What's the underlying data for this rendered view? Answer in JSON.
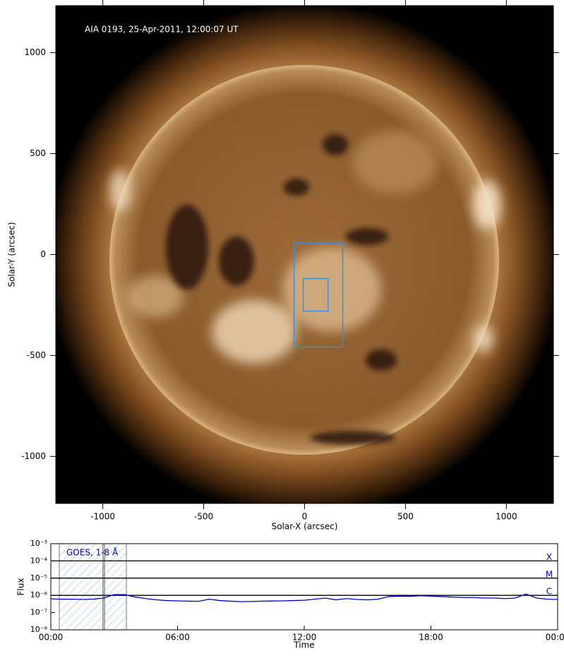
{
  "chart_data": [
    {
      "type": "image",
      "title": "AIA 0193, 25-Apr-2011, 12:00:07 UT",
      "xlabel": "Solar-X (arcsec)",
      "ylabel": "Solar-Y (arcsec)",
      "xlim": [
        -1233,
        1233
      ],
      "ylim": [
        -1233,
        1233
      ],
      "xticks": [
        -1000,
        -500,
        0,
        500,
        1000
      ],
      "yticks": [
        -1000,
        -500,
        0,
        500,
        1000
      ],
      "boxes": [
        {
          "x": [
            -52,
            189
          ],
          "y": [
            -458,
            56
          ],
          "color": "#3a8fd8"
        },
        {
          "x": [
            -7,
            116
          ],
          "y": [
            -280,
            -119
          ],
          "color": "#3a8fd8"
        }
      ]
    },
    {
      "type": "line",
      "xlabel": "Time",
      "ylabel": "Flux",
      "log_y": true,
      "xlim": [
        0,
        24
      ],
      "xticks": [
        {
          "value": 0,
          "label": "00:00"
        },
        {
          "value": 6,
          "label": "06:00"
        },
        {
          "value": 12,
          "label": "12:00"
        },
        {
          "value": 18,
          "label": "18:00"
        },
        {
          "value": 24,
          "label": "00:00"
        }
      ],
      "ylim": [
        1e-08,
        0.001
      ],
      "yticks": [
        {
          "value": 1e-08,
          "label": "10⁻⁸"
        },
        {
          "value": 1e-07,
          "label": "10⁻⁷"
        },
        {
          "value": 1e-06,
          "label": "10⁻⁶"
        },
        {
          "value": 1e-05,
          "label": "10⁻⁵"
        },
        {
          "value": 0.0001,
          "label": "10⁻⁴"
        },
        {
          "value": 0.001,
          "label": "10⁻³"
        }
      ],
      "flare_classes": [
        {
          "value": 0.0001,
          "label": "X"
        },
        {
          "value": 1e-05,
          "label": "M"
        },
        {
          "value": 1e-06,
          "label": "C"
        }
      ],
      "span": [
        0.4,
        3.58
      ],
      "markers_x": [
        2.47,
        2.54
      ],
      "x": [
        0,
        0.5,
        1,
        1.5,
        2,
        2.5,
        3,
        3.5,
        4,
        4.5,
        5,
        5.5,
        6,
        6.5,
        7,
        7.5,
        8,
        8.5,
        9,
        9.5,
        10,
        10.5,
        11,
        11.5,
        12,
        12.5,
        13,
        13.5,
        14,
        14.5,
        15,
        15.5,
        16,
        16.5,
        17,
        17.5,
        18,
        18.5,
        19,
        19.5,
        20,
        20.5,
        21,
        21.5,
        22,
        22.5,
        23,
        23.5,
        24
      ],
      "series": [
        {
          "name": "GOES, 1-8 Å",
          "color": "#0000cc",
          "values": [
            6.3e-07,
            6e-07,
            6e-07,
            5.8e-07,
            6e-07,
            7e-07,
            1.1e-06,
            1.1e-06,
            8e-07,
            6.5e-07,
            5.5e-07,
            5e-07,
            4.8e-07,
            4.6e-07,
            4.5e-07,
            6e-07,
            5e-07,
            4.6e-07,
            4.3e-07,
            4.4e-07,
            4.6e-07,
            4.7e-07,
            4.8e-07,
            5e-07,
            5.2e-07,
            6e-07,
            7e-07,
            5.5e-07,
            6.5e-07,
            5.8e-07,
            5.5e-07,
            6e-07,
            8.5e-07,
            9e-07,
            8.8e-07,
            9.5e-07,
            9e-07,
            8.5e-07,
            8e-07,
            7.5e-07,
            7.5e-07,
            7e-07,
            7e-07,
            6.5e-07,
            7e-07,
            1.2e-06,
            7e-07,
            6e-07,
            5.8e-07
          ]
        }
      ]
    }
  ]
}
